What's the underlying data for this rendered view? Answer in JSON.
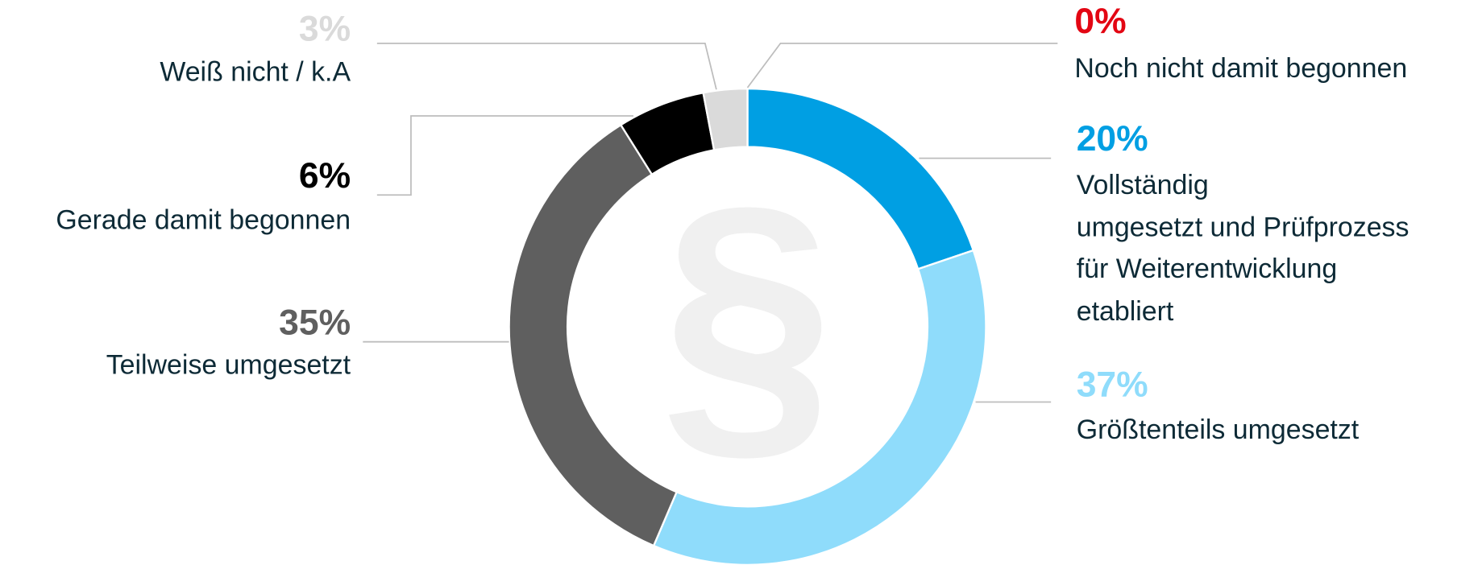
{
  "chart_data": {
    "type": "donut",
    "center_symbol": "§",
    "categories": [
      [
        "Vollständig",
        "umgesetzt und Prüfprozess",
        "für Weiterentwicklung",
        "etabliert"
      ],
      [
        "Größtenteils umgesetzt"
      ],
      [
        "Teilweise umgesetzt"
      ],
      [
        "Gerade damit begonnen"
      ],
      [
        "Weiß nicht / k.A"
      ],
      [
        "Noch nicht damit begonnen"
      ]
    ],
    "values": [
      20,
      37,
      35,
      6,
      3,
      0
    ],
    "value_labels": [
      "20%",
      "37%",
      "35%",
      "6%",
      "3%",
      "0%"
    ],
    "colors": [
      "#009fe3",
      "#8fdcfb",
      "#5f5f5f",
      "#000000",
      "#dadada",
      "#e30613"
    ]
  }
}
